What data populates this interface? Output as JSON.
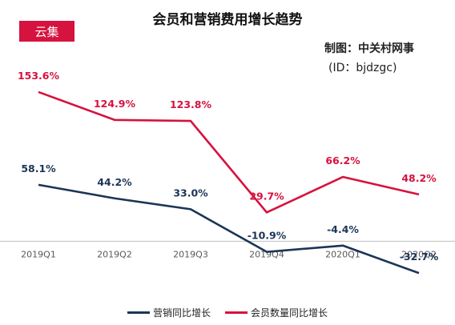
{
  "brand": "云集",
  "credit": {
    "line1": "制图：中关村网事",
    "line2": "(ID：bjdzgc)"
  },
  "colors": {
    "marketing": "#1c3557",
    "members": "#d6123e",
    "axis": "#bfbfbf"
  },
  "chart_data": {
    "type": "line",
    "title": "会员和营销费用增长趋势",
    "categories": [
      "2019Q1",
      "2019Q2",
      "2019Q3",
      "2019Q4",
      "2020Q1",
      "2020Q2"
    ],
    "series": [
      {
        "name": "营销同比增长",
        "values": [
          58.1,
          44.2,
          33.0,
          -10.9,
          -4.4,
          -32.7
        ],
        "labels": [
          "58.1%",
          "44.2%",
          "33.0%",
          "-10.9%",
          "-4.4%",
          "-32.7%"
        ]
      },
      {
        "name": "会员数量同比增长",
        "values": [
          153.6,
          124.9,
          123.8,
          29.7,
          66.2,
          48.2
        ],
        "labels": [
          "153.6%",
          "124.9%",
          "123.8%",
          "29.7%",
          "66.2%",
          "48.2%"
        ]
      }
    ],
    "ylim": [
      -40,
      170
    ],
    "zero_axis": true,
    "grid": false,
    "legend_position": "bottom"
  }
}
